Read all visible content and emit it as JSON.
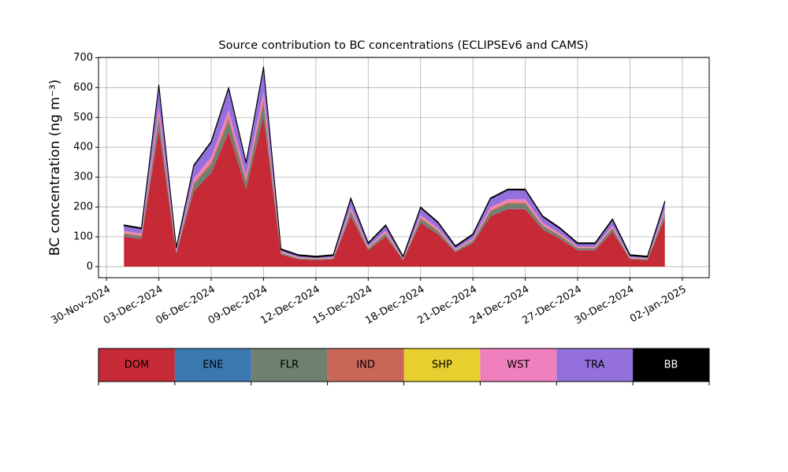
{
  "chart_data": {
    "type": "stacked_area",
    "title": "Source contribution to BC concentrations (ECLIPSEv6 and CAMS)",
    "y_label": "BC concentration (ng m⁻³)",
    "x": [
      "2024-12-01",
      "2024-12-02",
      "2024-12-03",
      "2024-12-04",
      "2024-12-05",
      "2024-12-06",
      "2024-12-07",
      "2024-12-08",
      "2024-12-09",
      "2024-12-10",
      "2024-12-11",
      "2024-12-12",
      "2024-12-13",
      "2024-12-14",
      "2024-12-15",
      "2024-12-16",
      "2024-12-17",
      "2024-12-18",
      "2024-12-19",
      "2024-12-20",
      "2024-12-21",
      "2024-12-22",
      "2024-12-23",
      "2024-12-24",
      "2024-12-25",
      "2024-12-26",
      "2024-12-27",
      "2024-12-28",
      "2024-12-29",
      "2024-12-30",
      "2024-12-31",
      "2025-01-01"
    ],
    "series": [
      {
        "name": "DOM",
        "color": "#c62a37",
        "values": [
          101,
          93,
          459,
          44,
          253,
          315,
          451,
          261,
          505,
          41,
          25,
          22,
          25,
          169,
          55,
          101,
          22,
          147,
          109,
          49,
          79,
          169,
          193,
          193,
          125,
          93,
          55,
          55,
          117,
          25,
          22,
          163
        ]
      },
      {
        "name": "ENE",
        "color": "#3a78b0",
        "values": [
          1,
          1,
          1,
          1,
          1,
          1,
          1,
          1,
          1,
          1,
          1,
          1,
          1,
          1,
          1,
          1,
          1,
          1,
          1,
          1,
          1,
          1,
          1,
          1,
          1,
          1,
          1,
          1,
          1,
          1,
          1,
          1
        ]
      },
      {
        "name": "FLR",
        "color": "#6e8070",
        "values": [
          8,
          8,
          37,
          4,
          20,
          25,
          36,
          21,
          40,
          4,
          2,
          2,
          2,
          14,
          5,
          8,
          2,
          12,
          9,
          4,
          7,
          14,
          16,
          16,
          10,
          8,
          5,
          5,
          10,
          2,
          2,
          13
        ]
      },
      {
        "name": "IND",
        "color": "#c86658",
        "values": [
          3,
          3,
          12,
          1,
          7,
          8,
          12,
          7,
          13,
          1,
          1,
          1,
          1,
          5,
          2,
          3,
          1,
          4,
          3,
          1,
          2,
          5,
          5,
          5,
          3,
          3,
          2,
          2,
          3,
          1,
          1,
          4
        ]
      },
      {
        "name": "SHP",
        "color": "#e8cf30",
        "values": [
          1,
          1,
          1,
          1,
          1,
          1,
          1,
          1,
          1,
          1,
          1,
          1,
          1,
          1,
          1,
          1,
          1,
          1,
          1,
          1,
          1,
          1,
          1,
          1,
          1,
          1,
          1,
          1,
          1,
          1,
          1,
          1
        ]
      },
      {
        "name": "WST",
        "color": "#f07fbd",
        "values": [
          6,
          5,
          24,
          3,
          14,
          17,
          24,
          14,
          27,
          2,
          2,
          1,
          2,
          9,
          3,
          6,
          1,
          8,
          6,
          3,
          4,
          9,
          10,
          10,
          7,
          5,
          3,
          3,
          6,
          2,
          1,
          9
        ]
      },
      {
        "name": "TRA",
        "color": "#9370db",
        "values": [
          17,
          16,
          73,
          8,
          41,
          50,
          72,
          42,
          80,
          7,
          5,
          4,
          5,
          28,
          10,
          17,
          4,
          24,
          18,
          8,
          13,
          28,
          31,
          31,
          20,
          16,
          10,
          10,
          19,
          5,
          4,
          26
        ]
      },
      {
        "name": "BB",
        "color": "#000000",
        "values": [
          3,
          3,
          3,
          3,
          3,
          3,
          3,
          3,
          3,
          3,
          3,
          3,
          3,
          3,
          3,
          3,
          3,
          3,
          3,
          3,
          3,
          3,
          3,
          3,
          3,
          3,
          3,
          3,
          3,
          3,
          3,
          3
        ]
      }
    ],
    "xlim": [
      "2024-11-29T13:00",
      "2025-01-03T13:00"
    ],
    "xticks": [
      {
        "value": "2024-11-30",
        "label": "30-Nov-2024"
      },
      {
        "value": "2024-12-03",
        "label": "03-Dec-2024"
      },
      {
        "value": "2024-12-06",
        "label": "06-Dec-2024"
      },
      {
        "value": "2024-12-09",
        "label": "09-Dec-2024"
      },
      {
        "value": "2024-12-12",
        "label": "12-Dec-2024"
      },
      {
        "value": "2024-12-15",
        "label": "15-Dec-2024"
      },
      {
        "value": "2024-12-18",
        "label": "18-Dec-2024"
      },
      {
        "value": "2024-12-21",
        "label": "21-Dec-2024"
      },
      {
        "value": "2024-12-24",
        "label": "24-Dec-2024"
      },
      {
        "value": "2024-12-27",
        "label": "27-Dec-2024"
      },
      {
        "value": "2024-12-30",
        "label": "30-Dec-2024"
      },
      {
        "value": "2025-01-02",
        "label": "02-Jan-2025"
      }
    ],
    "ylim": [
      -37,
      701
    ],
    "yticks": [
      0,
      100,
      200,
      300,
      400,
      500,
      600,
      700
    ],
    "grid": true,
    "legend": "bottom"
  }
}
